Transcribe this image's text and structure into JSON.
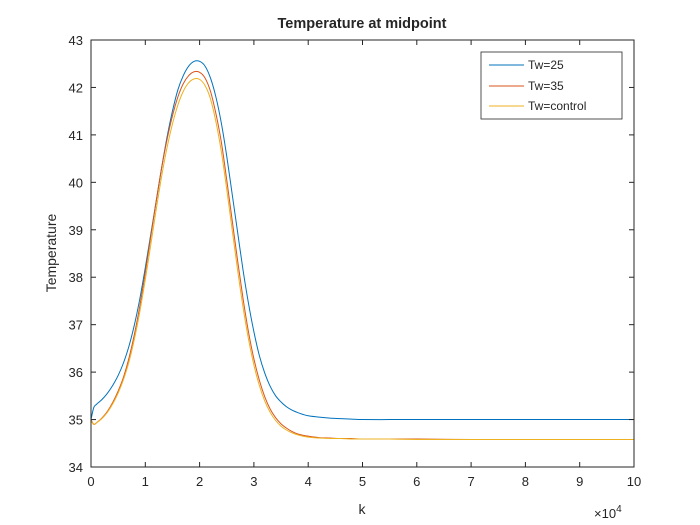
{
  "chart_data": {
    "type": "line",
    "title": "Temperature at midpoint",
    "xlabel": "k",
    "ylabel": "Temperature",
    "x_exponent_label": "×10",
    "x_exponent_power": "4",
    "xlim": [
      0,
      100000
    ],
    "ylim": [
      34,
      43
    ],
    "xticks": [
      0,
      10000,
      20000,
      30000,
      40000,
      50000,
      60000,
      70000,
      80000,
      90000,
      100000
    ],
    "xtick_labels": [
      "0",
      "1",
      "2",
      "3",
      "4",
      "5",
      "6",
      "7",
      "8",
      "9",
      "10"
    ],
    "yticks": [
      34,
      35,
      36,
      37,
      38,
      39,
      40,
      41,
      42,
      43
    ],
    "ytick_labels": [
      "34",
      "35",
      "36",
      "37",
      "38",
      "39",
      "40",
      "41",
      "42",
      "43"
    ],
    "grid": false,
    "legend_position": "top-right",
    "series": [
      {
        "name": "Tw=25",
        "color": "#0072BD",
        "x": [
          0,
          500,
          1000,
          2000,
          3000,
          4000,
          5000,
          6000,
          7000,
          8000,
          9000,
          10000,
          11000,
          12000,
          13000,
          14000,
          15000,
          16000,
          17000,
          18000,
          19000,
          20000,
          21000,
          22000,
          23000,
          24000,
          25000,
          26000,
          27000,
          28000,
          29000,
          30000,
          31000,
          32000,
          33000,
          34000,
          35000,
          36000,
          37000,
          38000,
          39000,
          40000,
          42000,
          44000,
          46000,
          48000,
          50000,
          55000,
          60000,
          70000,
          80000,
          90000,
          100000
        ],
        "y": [
          35.0,
          35.25,
          35.32,
          35.42,
          35.55,
          35.72,
          35.93,
          36.2,
          36.55,
          37.0,
          37.55,
          38.2,
          38.9,
          39.6,
          40.3,
          40.95,
          41.5,
          41.95,
          42.25,
          42.45,
          42.55,
          42.55,
          42.45,
          42.2,
          41.8,
          41.25,
          40.55,
          39.75,
          38.95,
          38.15,
          37.45,
          36.85,
          36.35,
          35.98,
          35.7,
          35.5,
          35.37,
          35.27,
          35.2,
          35.15,
          35.11,
          35.08,
          35.05,
          35.03,
          35.02,
          35.01,
          35.0,
          35.0,
          35.0,
          35.0,
          35.0,
          35.0,
          35.0
        ]
      },
      {
        "name": "Tw=35",
        "color": "#D95319",
        "x": [
          0,
          500,
          1000,
          2000,
          3000,
          4000,
          5000,
          6000,
          7000,
          8000,
          9000,
          10000,
          11000,
          12000,
          13000,
          14000,
          15000,
          16000,
          17000,
          18000,
          19000,
          20000,
          21000,
          22000,
          23000,
          24000,
          25000,
          26000,
          27000,
          28000,
          29000,
          30000,
          31000,
          32000,
          33000,
          34000,
          35000,
          36000,
          37000,
          38000,
          39000,
          40000,
          42000,
          44000,
          46000,
          48000,
          50000,
          55000,
          60000,
          70000,
          80000,
          90000,
          100000
        ],
        "y": [
          35.0,
          34.9,
          34.93,
          35.03,
          35.17,
          35.36,
          35.6,
          35.9,
          36.3,
          36.8,
          37.4,
          38.1,
          38.85,
          39.6,
          40.3,
          40.9,
          41.4,
          41.8,
          42.08,
          42.25,
          42.33,
          42.32,
          42.2,
          41.92,
          41.45,
          40.85,
          40.05,
          39.2,
          38.35,
          37.55,
          36.85,
          36.28,
          35.83,
          35.48,
          35.22,
          35.04,
          34.91,
          34.82,
          34.75,
          34.7,
          34.67,
          34.65,
          34.62,
          34.61,
          34.6,
          34.6,
          34.59,
          34.59,
          34.59,
          34.58,
          34.58,
          34.58,
          34.58
        ]
      },
      {
        "name": "Tw=control",
        "color": "#EDB120",
        "x": [
          0,
          500,
          1000,
          2000,
          3000,
          4000,
          5000,
          6000,
          7000,
          8000,
          9000,
          10000,
          11000,
          12000,
          13000,
          14000,
          15000,
          16000,
          17000,
          18000,
          19000,
          20000,
          21000,
          22000,
          23000,
          24000,
          25000,
          26000,
          27000,
          28000,
          29000,
          30000,
          31000,
          32000,
          33000,
          34000,
          35000,
          36000,
          37000,
          38000,
          39000,
          40000,
          42000,
          44000,
          46000,
          48000,
          50000,
          55000,
          60000,
          70000,
          80000,
          90000,
          100000
        ],
        "y": [
          34.98,
          34.9,
          34.93,
          35.02,
          35.15,
          35.33,
          35.56,
          35.85,
          36.22,
          36.7,
          37.28,
          37.95,
          38.68,
          39.42,
          40.12,
          40.73,
          41.23,
          41.63,
          41.92,
          42.1,
          42.18,
          42.17,
          42.04,
          41.76,
          41.28,
          40.65,
          39.85,
          39.0,
          38.15,
          37.37,
          36.7,
          36.15,
          35.72,
          35.39,
          35.15,
          34.98,
          34.86,
          34.78,
          34.72,
          34.68,
          34.65,
          34.63,
          34.61,
          34.6,
          34.6,
          34.59,
          34.59,
          34.59,
          34.58,
          34.58,
          34.58,
          34.58,
          34.58
        ]
      }
    ]
  }
}
